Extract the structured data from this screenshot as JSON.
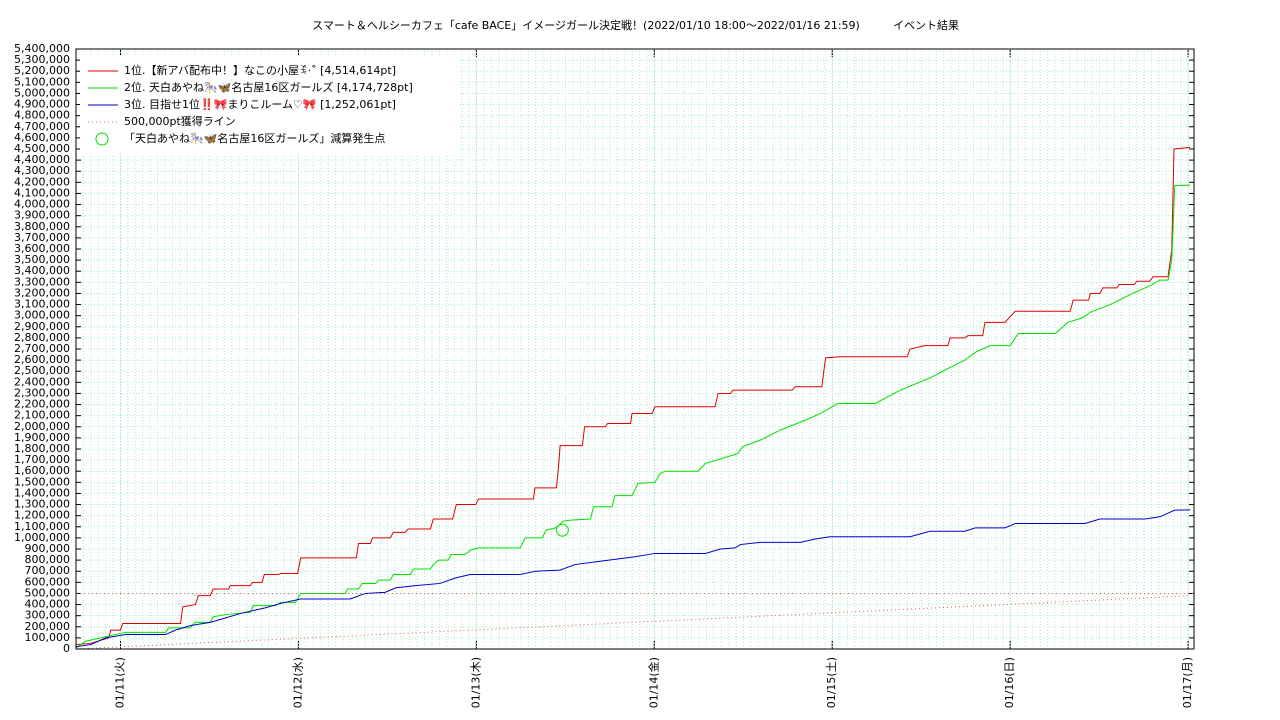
{
  "chart_data": {
    "type": "line",
    "title": "スマート＆ヘルシーカフェ「cafe BACE」イメージガール決定戦！(2022/01/10 18:00～2022/01/16 21:59)",
    "subtitle": "イベント結果",
    "xlim": [
      0,
      150.8
    ],
    "xticks": [
      {
        "value": 6,
        "label": "01/11(火)"
      },
      {
        "value": 30,
        "label": "01/12(水)"
      },
      {
        "value": 54,
        "label": "01/13(木)"
      },
      {
        "value": 78,
        "label": "01/14(金)"
      },
      {
        "value": 102,
        "label": "01/15(土)"
      },
      {
        "value": 126,
        "label": "01/16(日)"
      },
      {
        "value": 150,
        "label": "01/17(月)"
      }
    ],
    "ylim": [
      0,
      5400000
    ],
    "yticks": [
      0,
      {
        "value": 100000,
        "label": "100,000"
      },
      {
        "value": 200000,
        "label": "200,000"
      },
      {
        "value": 300000,
        "label": "300,000"
      },
      {
        "value": 400000,
        "label": "400,000"
      },
      {
        "value": 500000,
        "label": "500,000"
      },
      {
        "value": 600000,
        "label": "600,000"
      },
      {
        "value": 700000,
        "label": "700,000"
      },
      {
        "value": 800000,
        "label": "800,000"
      },
      {
        "value": 900000,
        "label": "900,000"
      },
      {
        "value": 1000000,
        "label": "1,000,000"
      },
      {
        "value": 1100000,
        "label": "1,100,000"
      },
      {
        "value": 1200000,
        "label": "1,200,000"
      },
      {
        "value": 1300000,
        "label": "1,300,000"
      },
      {
        "value": 1400000,
        "label": "1,400,000"
      },
      {
        "value": 1500000,
        "label": "1,500,000"
      },
      {
        "value": 1600000,
        "label": "1,600,000"
      },
      {
        "value": 1700000,
        "label": "1,700,000"
      },
      {
        "value": 1800000,
        "label": "1,800,000"
      },
      {
        "value": 1900000,
        "label": "1,900,000"
      },
      {
        "value": 2000000,
        "label": "2,000,000"
      },
      {
        "value": 2100000,
        "label": "2,100,000"
      },
      {
        "value": 2200000,
        "label": "2,200,000"
      },
      {
        "value": 2300000,
        "label": "2,300,000"
      },
      {
        "value": 2400000,
        "label": "2,400,000"
      },
      {
        "value": 2500000,
        "label": "2,500,000"
      },
      {
        "value": 2600000,
        "label": "2,600,000"
      },
      {
        "value": 2700000,
        "label": "2,700,000"
      },
      {
        "value": 2800000,
        "label": "2,800,000"
      },
      {
        "value": 2900000,
        "label": "2,900,000"
      },
      {
        "value": 3000000,
        "label": "3,000,000"
      },
      {
        "value": 3100000,
        "label": "3,100,000"
      },
      {
        "value": 3200000,
        "label": "3,200,000"
      },
      {
        "value": 3300000,
        "label": "3,300,000"
      },
      {
        "value": 3400000,
        "label": "3,400,000"
      },
      {
        "value": 3500000,
        "label": "3,500,000"
      },
      {
        "value": 3600000,
        "label": "3,600,000"
      },
      {
        "value": 3700000,
        "label": "3,700,000"
      },
      {
        "value": 3800000,
        "label": "3,800,000"
      },
      {
        "value": 3900000,
        "label": "3,900,000"
      },
      {
        "value": 4000000,
        "label": "4,000,000"
      },
      {
        "value": 4100000,
        "label": "4,100,000"
      },
      {
        "value": 4200000,
        "label": "4,200,000"
      },
      {
        "value": 4300000,
        "label": "4,300,000"
      },
      {
        "value": 4400000,
        "label": "4,400,000"
      },
      {
        "value": 4500000,
        "label": "4,500,000"
      },
      {
        "value": 4600000,
        "label": "4,600,000"
      },
      {
        "value": 4700000,
        "label": "4,700,000"
      },
      {
        "value": 4800000,
        "label": "4,800,000"
      },
      {
        "value": 4900000,
        "label": "4,900,000"
      },
      {
        "value": 5000000,
        "label": "5,000,000"
      },
      {
        "value": 5100000,
        "label": "5,100,000"
      },
      {
        "value": 5200000,
        "label": "5,200,000"
      },
      {
        "value": 5300000,
        "label": "5,300,000"
      },
      {
        "value": 5400000,
        "label": "5,400,000"
      }
    ],
    "grid": true,
    "legend": "upper-left",
    "series": [
      {
        "name": "1位.【新アバ配布中！】なこの小屋ꉂ·˚ [4,514,614pt]",
        "color": "#e00000",
        "style": "line",
        "x": [
          0,
          2.0,
          4.4,
          4.7,
          6.0,
          6.3,
          14.1,
          14.4,
          16.1,
          16.5,
          18.1,
          18.5,
          20.6,
          20.8,
          23.5,
          23.8,
          25.1,
          25.4,
          27.3,
          27.6,
          29.9,
          30.3,
          37.8,
          38.1,
          39.7,
          40.0,
          42.4,
          42.8,
          44.4,
          44.8,
          47.8,
          48.2,
          50.8,
          51.3,
          53.9,
          54.3,
          61.7,
          61.9,
          64.8,
          65.1,
          65.3,
          68.3,
          68.6,
          71.4,
          71.7,
          74.8,
          75.0,
          77.7,
          78.1,
          86.2,
          86.6,
          88.3,
          88.6,
          96.6,
          97.0,
          100.6,
          101.1,
          103.1,
          112.1,
          112.5,
          114.5,
          117.6,
          117.9,
          119.9,
          120.3,
          122.3,
          122.6,
          125.3,
          126.7,
          134.1,
          134.5,
          136.6,
          136.8,
          138.1,
          138.5,
          140.4,
          140.7,
          142.7,
          143.1,
          144.8,
          145.3,
          147.3,
          147.8,
          148.1,
          150.3
        ],
        "values": [
          40000,
          50000,
          100000,
          170000,
          170000,
          230000,
          230000,
          380000,
          400000,
          480000,
          480000,
          540000,
          540000,
          570000,
          570000,
          600000,
          600000,
          670000,
          670000,
          680000,
          680000,
          820000,
          820000,
          950000,
          950000,
          1000000,
          1000000,
          1050000,
          1050000,
          1080000,
          1080000,
          1170000,
          1170000,
          1300000,
          1300000,
          1350000,
          1350000,
          1450000,
          1450000,
          1650000,
          1830000,
          1830000,
          2000000,
          2000000,
          2030000,
          2030000,
          2120000,
          2120000,
          2180000,
          2180000,
          2300000,
          2300000,
          2330000,
          2330000,
          2360000,
          2360000,
          2620000,
          2630000,
          2630000,
          2700000,
          2730000,
          2730000,
          2800000,
          2800000,
          2820000,
          2820000,
          2940000,
          2940000,
          3040000,
          3040000,
          3140000,
          3140000,
          3200000,
          3200000,
          3250000,
          3250000,
          3280000,
          3280000,
          3310000,
          3310000,
          3350000,
          3350000,
          3590000,
          4500000,
          4514614
        ]
      },
      {
        "name": "2位. 天白あやね🎠🦋名古屋16区ガールズ [4,174,728pt]",
        "color": "#00e000",
        "style": "line",
        "x": [
          0,
          1.3,
          3.3,
          6.0,
          6.7,
          12.1,
          12.5,
          15.4,
          16.1,
          18.1,
          18.5,
          20.2,
          23.5,
          23.9,
          26.9,
          27.6,
          29.6,
          30.3,
          36.3,
          36.6,
          38.1,
          38.6,
          40.4,
          40.8,
          42.4,
          42.8,
          45.1,
          45.5,
          47.8,
          48.2,
          48.9,
          50.2,
          50.6,
          52.5,
          53.2,
          54.3,
          59.9,
          60.6,
          62.9,
          63.4,
          64.7,
          65.7,
          66.7,
          69.4,
          69.8,
          72.3,
          72.7,
          75.0,
          75.8,
          78.1,
          78.8,
          79.5,
          83.9,
          84.9,
          86.9,
          89.3,
          89.9,
          92.3,
          95.0,
          98.4,
          100.4,
          102.8,
          107.8,
          111.2,
          115.2,
          117.2,
          119.9,
          121.3,
          123.3,
          126.0,
          127.1,
          132.1,
          133.8,
          135.7,
          136.8,
          139.5,
          142.5,
          144.9,
          146.2,
          147.3,
          147.8,
          148.2,
          150.3
        ],
        "values": [
          10000,
          70000,
          100000,
          140000,
          150000,
          150000,
          190000,
          190000,
          240000,
          240000,
          290000,
          310000,
          330000,
          390000,
          390000,
          420000,
          420000,
          500000,
          500000,
          540000,
          540000,
          590000,
          590000,
          620000,
          620000,
          670000,
          670000,
          720000,
          720000,
          760000,
          800000,
          800000,
          850000,
          850000,
          890000,
          910000,
          910000,
          1000000,
          1000000,
          1070000,
          1090000,
          1150000,
          1160000,
          1170000,
          1280000,
          1280000,
          1380000,
          1380000,
          1490000,
          1500000,
          1580000,
          1600000,
          1600000,
          1670000,
          1710000,
          1760000,
          1820000,
          1880000,
          1970000,
          2060000,
          2120000,
          2210000,
          2210000,
          2330000,
          2440000,
          2510000,
          2600000,
          2670000,
          2730000,
          2730000,
          2840000,
          2840000,
          2940000,
          2980000,
          3030000,
          3100000,
          3200000,
          3270000,
          3320000,
          3320000,
          3500000,
          4170000,
          4174728
        ]
      },
      {
        "name": "3位. 目指せ1位‼️🎀まりこルーム♡🎀 [1,252,061pt]",
        "color": "#0000d0",
        "style": "line",
        "x": [
          0,
          2.0,
          4.0,
          6.7,
          12.1,
          13.4,
          15.4,
          18.1,
          20.2,
          22.2,
          25.5,
          27.6,
          30.3,
          37.0,
          39.0,
          41.7,
          43.1,
          45.8,
          49.1,
          51.2,
          53.2,
          59.9,
          61.9,
          65.3,
          67.3,
          70.7,
          75.4,
          78.1,
          84.9,
          86.9,
          88.9,
          89.6,
          92.3,
          97.7,
          99.7,
          101.7,
          112.5,
          115.2,
          119.9,
          121.3,
          125.3,
          126.7,
          136.1,
          138.1,
          144.2,
          146.2,
          148.2,
          150.3
        ],
        "values": [
          20000,
          40000,
          100000,
          130000,
          130000,
          170000,
          210000,
          240000,
          280000,
          320000,
          370000,
          410000,
          450000,
          450000,
          500000,
          510000,
          550000,
          570000,
          590000,
          640000,
          670000,
          670000,
          700000,
          710000,
          760000,
          790000,
          830000,
          860000,
          860000,
          900000,
          910000,
          940000,
          960000,
          960000,
          990000,
          1010000,
          1010000,
          1060000,
          1060000,
          1090000,
          1090000,
          1130000,
          1130000,
          1170000,
          1170000,
          1190000,
          1250000,
          1252061
        ]
      },
      {
        "name": "500,000pt獲得ライン",
        "color": "#e06060",
        "style": "dotted",
        "x": [
          0,
          150.8
        ],
        "values": [
          500000,
          500000
        ]
      },
      {
        "name": "「天白あやね🎠🦋名古屋16区ガールズ」減算発生点",
        "color": "#00e000",
        "style": "marker",
        "x": [
          65.6
        ],
        "values": [
          1070000
        ]
      },
      {
        "name": null,
        "color": "#e06060",
        "style": "dotted",
        "x": [
          0,
          150.3
        ],
        "values": [
          0,
          480000
        ]
      }
    ]
  }
}
